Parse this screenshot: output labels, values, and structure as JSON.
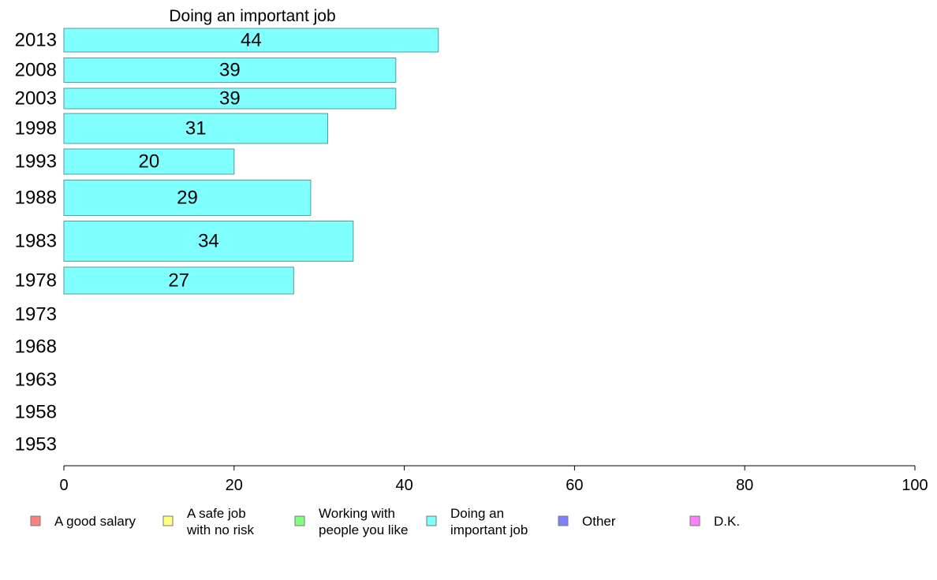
{
  "chart_data": {
    "type": "bar",
    "orientation": "horizontal",
    "title": "Doing an important job",
    "xlim": [
      0,
      100
    ],
    "x_ticks": [
      0,
      20,
      40,
      60,
      80,
      100
    ],
    "categories": [
      "2013",
      "2008",
      "2003",
      "1998",
      "1993",
      "1988",
      "1983",
      "1978",
      "1973",
      "1968",
      "1963",
      "1958",
      "1953"
    ],
    "series": [
      {
        "name": "Doing an important job",
        "color": "#80ffff",
        "values": [
          44,
          39,
          39,
          31,
          20,
          29,
          34,
          27,
          null,
          null,
          null,
          null,
          null
        ],
        "labels": [
          "44",
          "39",
          "39",
          "31",
          "20",
          "29",
          "34",
          "27",
          "",
          "",
          "",
          "",
          ""
        ]
      }
    ],
    "legend": {
      "placement": "bottom",
      "items": [
        {
          "lines": [
            "A good salary"
          ],
          "color": "#ff8080"
        },
        {
          "lines": [
            "A safe job",
            "with no risk"
          ],
          "color": "#ffff80"
        },
        {
          "lines": [
            "Working with",
            "people you like"
          ],
          "color": "#80ff80"
        },
        {
          "lines": [
            "Doing an",
            "important job"
          ],
          "color": "#80ffff"
        },
        {
          "lines": [
            "Other"
          ],
          "color": "#8080ff"
        },
        {
          "lines": [
            "D.K."
          ],
          "color": "#ff80ff"
        }
      ]
    },
    "grid": false
  }
}
